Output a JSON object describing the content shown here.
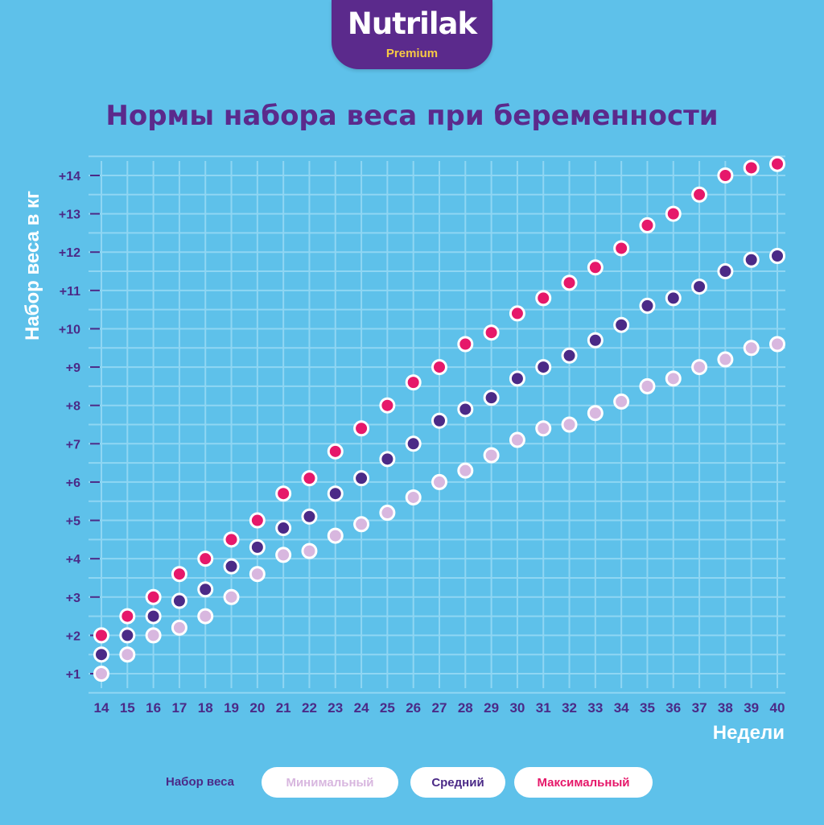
{
  "logo": {
    "name": "Nutrilak",
    "sub": "Premium"
  },
  "title": "Нормы набора веса при беременности",
  "colors": {
    "background": "#5ec1ea",
    "grid": "#8fd6f3",
    "title": "#5b2a8c",
    "minimal": "#d8b7df",
    "average": "#4b2a87",
    "maximal": "#e6186a"
  },
  "legend": {
    "label": "Набор веса",
    "items": [
      {
        "name": "Минимальный",
        "color": "#d8b7df"
      },
      {
        "name": "Средний",
        "color": "#4b2a87"
      },
      {
        "name": "Максимальный",
        "color": "#e6186a"
      }
    ]
  },
  "chart_data": {
    "type": "scatter",
    "title": "Нормы набора веса при беременности",
    "xlabel": "Недели",
    "ylabel": "Набор веса в кг",
    "x": [
      14,
      15,
      16,
      17,
      18,
      19,
      20,
      21,
      22,
      23,
      24,
      25,
      26,
      27,
      28,
      29,
      30,
      31,
      32,
      33,
      34,
      35,
      36,
      37,
      38,
      39,
      40
    ],
    "x_tick_labels": [
      "14",
      "15",
      "16",
      "17",
      "18",
      "19",
      "20",
      "21",
      "22",
      "23",
      "24",
      "25",
      "26",
      "27",
      "28",
      "29",
      "30",
      "31",
      "32",
      "33",
      "34",
      "35",
      "36",
      "37",
      "38",
      "39",
      "40"
    ],
    "y_tick_labels": [
      "+1",
      "+2",
      "+3",
      "+4",
      "+5",
      "+6",
      "+7",
      "+8",
      "+9",
      "+10",
      "+11",
      "+12",
      "+13",
      "+14"
    ],
    "xlim": [
      14,
      40
    ],
    "ylim": [
      1,
      14
    ],
    "grid": true,
    "legend_position": "bottom",
    "series": [
      {
        "name": "Минимальный",
        "color": "#d8b7df",
        "values": [
          1.0,
          1.5,
          2.0,
          2.2,
          2.5,
          3.0,
          3.6,
          4.1,
          4.2,
          4.6,
          4.9,
          5.2,
          5.6,
          6.0,
          6.3,
          6.7,
          7.1,
          7.4,
          7.5,
          7.8,
          8.1,
          8.5,
          8.7,
          9.0,
          9.2,
          9.5,
          9.6
        ]
      },
      {
        "name": "Средний",
        "color": "#4b2a87",
        "values": [
          1.5,
          2.0,
          2.5,
          2.9,
          3.2,
          3.8,
          4.3,
          4.8,
          5.1,
          5.7,
          6.1,
          6.6,
          7.0,
          7.6,
          7.9,
          8.2,
          8.7,
          9.0,
          9.3,
          9.7,
          10.1,
          10.6,
          10.8,
          11.1,
          11.5,
          11.8,
          11.9
        ]
      },
      {
        "name": "Максимальный",
        "color": "#e6186a",
        "values": [
          2.0,
          2.5,
          3.0,
          3.6,
          4.0,
          4.5,
          5.0,
          5.7,
          6.1,
          6.8,
          7.4,
          8.0,
          8.6,
          9.0,
          9.6,
          9.9,
          10.4,
          10.8,
          11.2,
          11.6,
          12.1,
          12.7,
          13.0,
          13.5,
          14.0,
          14.2,
          14.3
        ]
      }
    ]
  }
}
